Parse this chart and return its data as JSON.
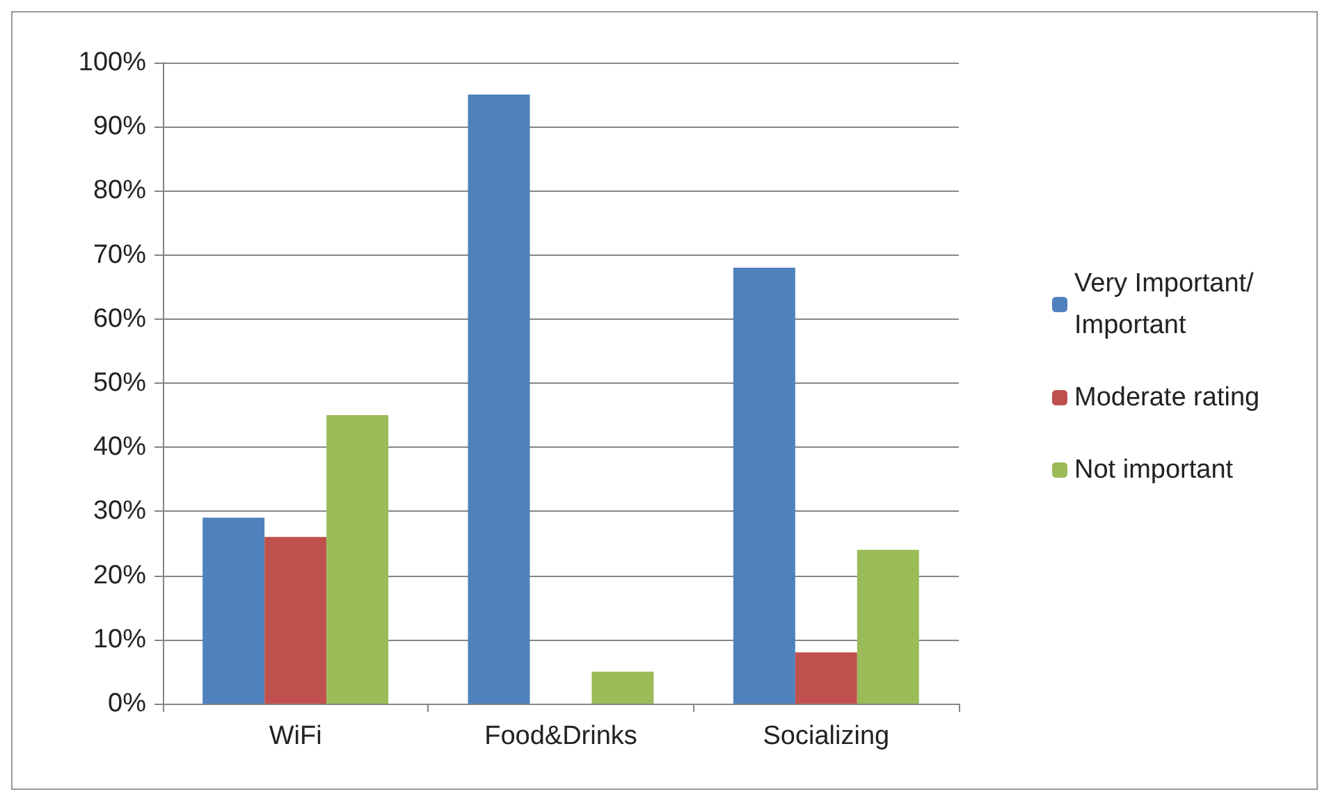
{
  "chart_data": {
    "type": "bar",
    "categories": [
      "WiFi",
      "Food&Drinks",
      "Socializing"
    ],
    "series": [
      {
        "name": "Very Important/ Important",
        "color": "#4f81bd",
        "values": [
          29,
          95,
          68
        ]
      },
      {
        "name": "Moderate rating",
        "color": "#c0504d",
        "values": [
          26,
          0,
          8
        ]
      },
      {
        "name": "Not important",
        "color": "#9bbb59",
        "values": [
          45,
          5,
          24
        ]
      }
    ],
    "ylim": [
      0,
      100
    ],
    "yticks": [
      {
        "value": 0,
        "label": "0%"
      },
      {
        "value": 10,
        "label": "10%"
      },
      {
        "value": 20,
        "label": "20%"
      },
      {
        "value": 30,
        "label": "30%"
      },
      {
        "value": 40,
        "label": "40%"
      },
      {
        "value": 50,
        "label": "50%"
      },
      {
        "value": 60,
        "label": "60%"
      },
      {
        "value": 70,
        "label": "70%"
      },
      {
        "value": 80,
        "label": "80%"
      },
      {
        "value": 90,
        "label": "90%"
      },
      {
        "value": 100,
        "label": "100%"
      }
    ],
    "grid": "y",
    "legend": "right"
  }
}
